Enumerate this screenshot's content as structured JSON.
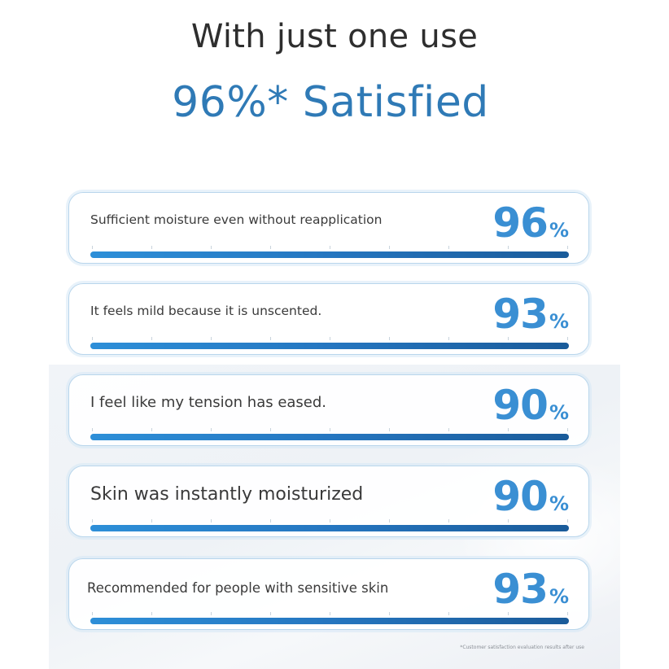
{
  "header": {
    "title": "With just one use",
    "subtitle": "96%* Satisfied"
  },
  "results": [
    {
      "label": "Sufficient moisture even without reapplication",
      "value": "96",
      "unit": "%",
      "fill_fraction": 1.0
    },
    {
      "label": "It feels mild because it is unscented.",
      "value": "93",
      "unit": "%",
      "fill_fraction": 1.0
    },
    {
      "label": "I feel like my tension has eased.",
      "value": "90",
      "unit": "%",
      "fill_fraction": 1.0
    },
    {
      "label": "Skin was instantly moisturized",
      "value": "90",
      "unit": "%",
      "fill_fraction": 1.0
    },
    {
      "label": "Recommended for people with sensitive skin",
      "value": "93",
      "unit": "%",
      "fill_fraction": 1.0
    }
  ],
  "footnote": "*Customer satisfaction evaluation results after use",
  "colors": {
    "title": "#2e2e2e",
    "accent": "#2f7ab6",
    "percent": "#3a8fd3",
    "bar_start": "#2d8fd8",
    "bar_end": "#1a5b9a",
    "card_border": "#b9d6ec"
  }
}
